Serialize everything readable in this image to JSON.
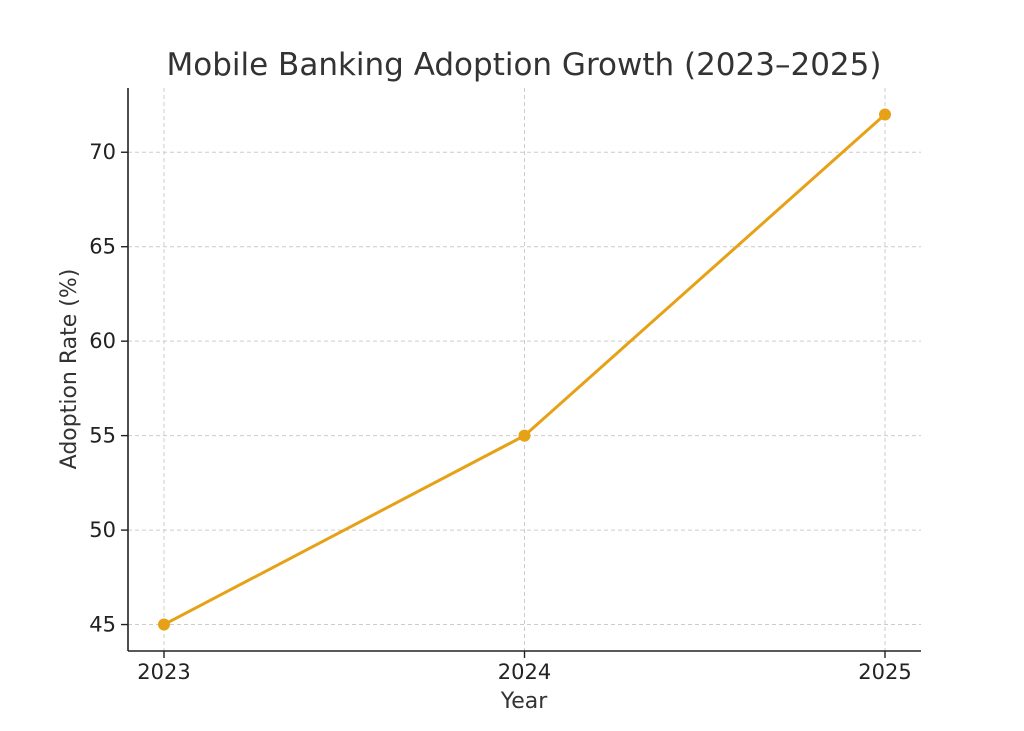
{
  "chart_data": {
    "type": "line",
    "title": "Mobile Banking Adoption Growth (2023–2025)",
    "xlabel": "Year",
    "ylabel": "Adoption Rate (%)",
    "categories": [
      "2023",
      "2024",
      "2025"
    ],
    "series": [
      {
        "values": [
          45,
          55,
          72
        ],
        "color": "#e6a117"
      }
    ],
    "yticks": [
      "45",
      "50",
      "55",
      "60",
      "65",
      "70"
    ],
    "ylim": [
      43.6,
      73.4
    ],
    "grid": true,
    "legend": "none"
  }
}
